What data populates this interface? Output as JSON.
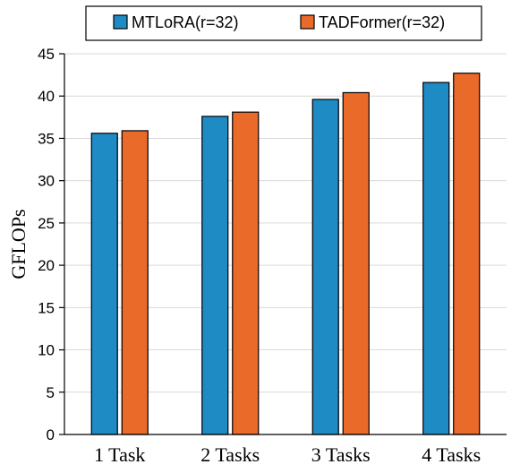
{
  "chart_data": {
    "type": "bar",
    "categories": [
      "1 Task",
      "2 Tasks",
      "3 Tasks",
      "4 Tasks"
    ],
    "series": [
      {
        "name": "MTLoRA(r=32)",
        "values": [
          35.6,
          37.6,
          39.6,
          41.6
        ],
        "color": "#1f8bc4"
      },
      {
        "name": "TADFormer(r=32)",
        "values": [
          35.9,
          38.1,
          40.4,
          42.7
        ],
        "color": "#ea6a2a"
      }
    ],
    "ylabel": "GFLOPs",
    "xlabel": "",
    "ylim": [
      0,
      45
    ],
    "yticks": [
      "0",
      "5",
      "10",
      "15",
      "20",
      "25",
      "30",
      "35",
      "40",
      "45"
    ],
    "grid": true,
    "legend_position": "top"
  }
}
